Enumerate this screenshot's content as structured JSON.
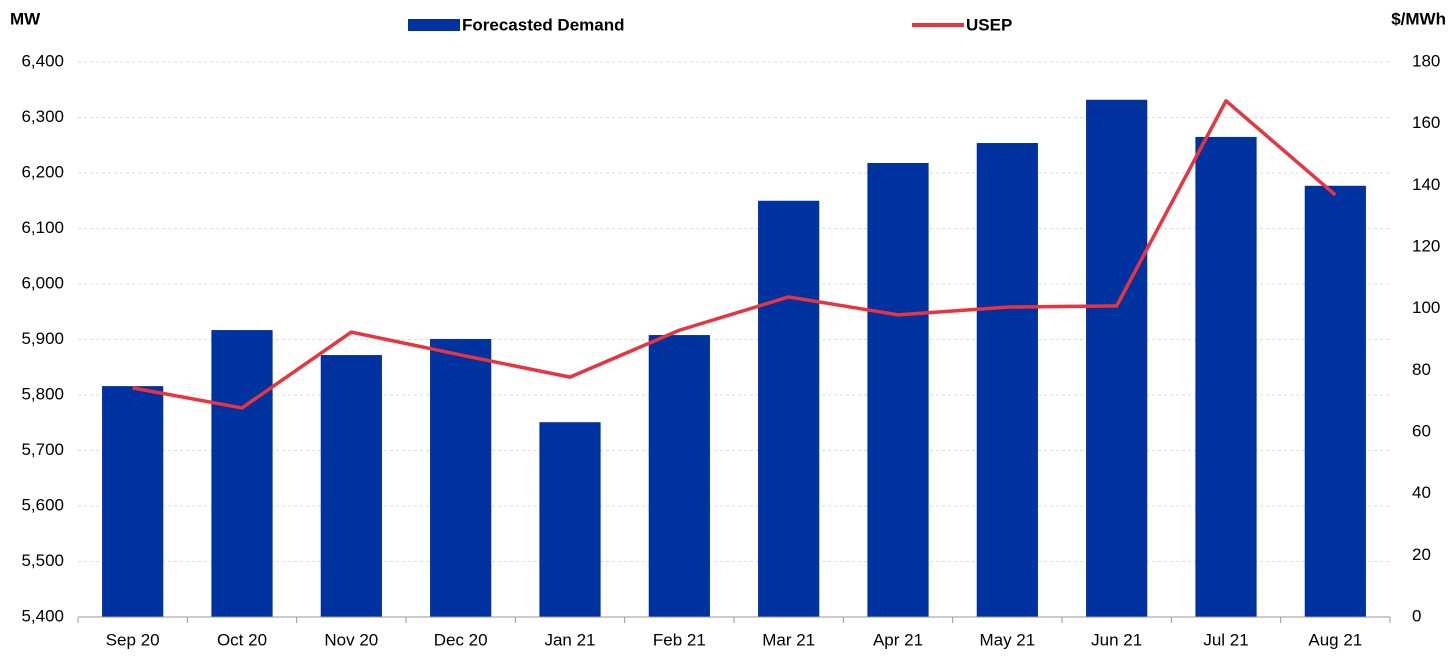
{
  "chart_data": {
    "type": "bar_line",
    "y_axis_label": "MW",
    "y2_axis_label": "$/MWh",
    "categories": [
      "Sep 20",
      "Oct 20",
      "Nov 20",
      "Dec 20",
      "Jan 21",
      "Feb 21",
      "Mar 21",
      "Apr 21",
      "May 21",
      "Jun 21",
      "Jul 21",
      "Aug 21"
    ],
    "series": [
      {
        "name": "Forecasted Demand",
        "type": "bar",
        "color": "#0033a0",
        "values": [
          5816,
          5917,
          5872,
          5901,
          5751,
          5908,
          6150,
          6218,
          6254,
          6332,
          6265,
          6177
        ]
      },
      {
        "name": "USEP",
        "type": "line",
        "axis": "y2",
        "color": "#e8343f",
        "values": [
          74.3,
          67.8,
          92.4,
          85,
          77.8,
          93,
          103.8,
          98,
          100.5,
          100.9,
          167.4,
          136.9
        ]
      }
    ],
    "ylim": [
      5400,
      6400
    ],
    "yticks": [
      {
        "value": 5400,
        "label": "5,400"
      },
      {
        "value": 5500,
        "label": "5,500"
      },
      {
        "value": 5600,
        "label": "5,600"
      },
      {
        "value": 5700,
        "label": "5,700"
      },
      {
        "value": 5800,
        "label": "5,800"
      },
      {
        "value": 5900,
        "label": "5,900"
      },
      {
        "value": 6000,
        "label": "6,000"
      },
      {
        "value": 6100,
        "label": "6,100"
      },
      {
        "value": 6200,
        "label": "6,200"
      },
      {
        "value": 6300,
        "label": "6,300"
      },
      {
        "value": 6400,
        "label": "6,400"
      }
    ],
    "y2lim": [
      0,
      180
    ],
    "y2ticks": [
      0,
      20,
      40,
      60,
      80,
      100,
      120,
      140,
      160,
      180
    ],
    "grid": true
  }
}
